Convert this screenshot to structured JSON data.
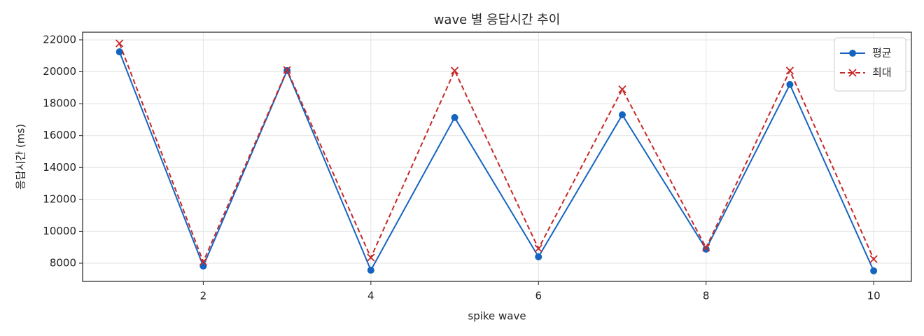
{
  "chart_data": {
    "type": "line",
    "title": "wave 별 응답시간 추이",
    "xlabel": "spike wave",
    "ylabel": "응답시간 (ms)",
    "x": [
      1,
      2,
      3,
      4,
      5,
      6,
      7,
      8,
      9,
      10
    ],
    "series": [
      {
        "name": "평균",
        "color": "#1565c0",
        "linestyle": "solid",
        "marker": "circle",
        "values": [
          21250,
          7820,
          20070,
          7560,
          17130,
          8400,
          17300,
          8880,
          19200,
          7520
        ]
      },
      {
        "name": "최대",
        "color": "#c62828",
        "linestyle": "dashed",
        "marker": "x",
        "values": [
          21780,
          8090,
          20110,
          8350,
          20070,
          8920,
          18900,
          8970,
          20070,
          8260
        ]
      }
    ],
    "xlim": [
      0.56,
      10.45
    ],
    "xticks": [
      2,
      4,
      6,
      8,
      10
    ],
    "ylim": [
      6860,
      22480
    ],
    "yticks": [
      8000,
      10000,
      12000,
      14000,
      16000,
      18000,
      20000,
      22000
    ],
    "grid": true,
    "legend": "upper right"
  }
}
